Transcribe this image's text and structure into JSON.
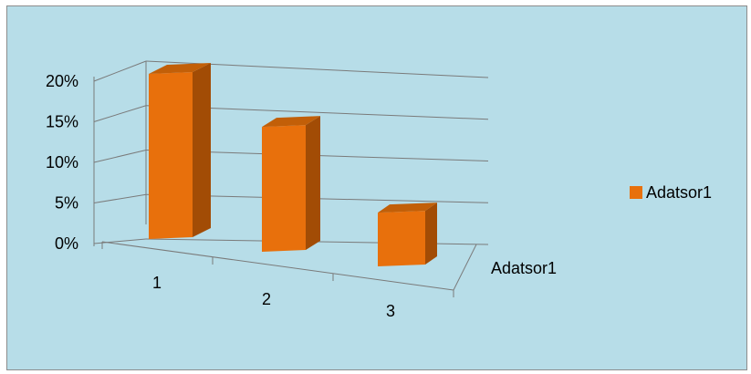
{
  "chart_data": {
    "type": "bar",
    "categories": [
      "1",
      "2",
      "3"
    ],
    "series": [
      {
        "name": "Adatsor1",
        "values": [
          0.2,
          0.16,
          0.07
        ],
        "color": "#e8700c"
      }
    ],
    "y_ticks": [
      "0%",
      "5%",
      "10%",
      "15%",
      "20%"
    ],
    "ylim": [
      0,
      0.2
    ],
    "depth_axis_label": "Adatsor1",
    "legend": {
      "position": "right",
      "entries": [
        "Adatsor1"
      ]
    },
    "grid": true,
    "style": "3d-column",
    "colors": {
      "background": "#b7dde8",
      "bar_front": "#e8700c",
      "bar_side": "#a24c05",
      "bar_top": "#c25f08",
      "grid": "#7a7a7a"
    }
  }
}
